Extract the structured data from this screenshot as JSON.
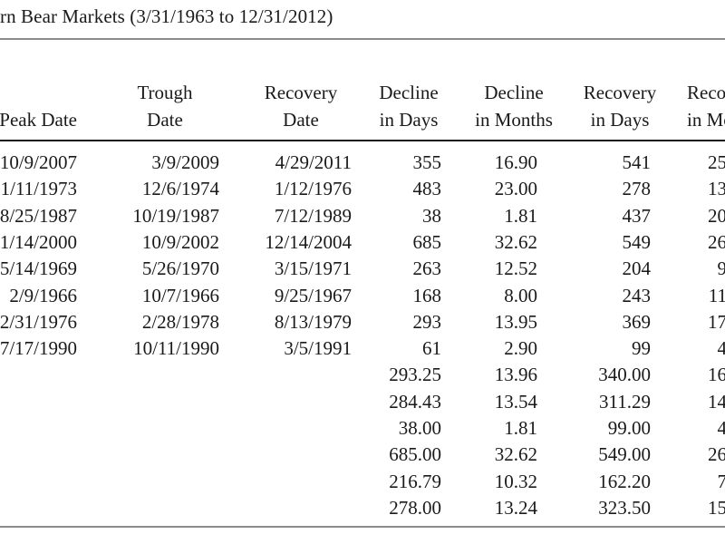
{
  "title": "rn Bear Markets (3/31/1963 to 12/31/2012)",
  "headers": [
    {
      "line1": "",
      "line2": "Peak Date"
    },
    {
      "line1": "Trough",
      "line2": "Date"
    },
    {
      "line1": "Recovery",
      "line2": "Date"
    },
    {
      "line1": "Decline",
      "line2": "in Days"
    },
    {
      "line1": "Decline",
      "line2": "in Months"
    },
    {
      "line1": "Recovery",
      "line2": "in Days"
    },
    {
      "line1": "Reco",
      "line2": "in Mo"
    }
  ],
  "rows": [
    [
      "10/9/2007",
      "3/9/2009",
      "4/29/2011",
      "355",
      "16.90",
      "541",
      "25"
    ],
    [
      "1/11/1973",
      "12/6/1974",
      "1/12/1976",
      "483",
      "23.00",
      "278",
      "13"
    ],
    [
      "8/25/1987",
      "10/19/1987",
      "7/12/1989",
      "38",
      "1.81",
      "437",
      "20"
    ],
    [
      "1/14/2000",
      "10/9/2002",
      "12/14/2004",
      "685",
      "32.62",
      "549",
      "26"
    ],
    [
      "5/14/1969",
      "5/26/1970",
      "3/15/1971",
      "263",
      "12.52",
      "204",
      "9"
    ],
    [
      "2/9/1966",
      "10/7/1966",
      "9/25/1967",
      "168",
      "8.00",
      "243",
      "11"
    ],
    [
      "2/31/1976",
      "2/28/1978",
      "8/13/1979",
      "293",
      "13.95",
      "369",
      "17"
    ],
    [
      "7/17/1990",
      "10/11/1990",
      "3/5/1991",
      "61",
      "2.90",
      "99",
      "4"
    ],
    [
      "",
      "",
      "",
      "293.25",
      "13.96",
      "340.00",
      "16"
    ],
    [
      "",
      "",
      "",
      "284.43",
      "13.54",
      "311.29",
      "14"
    ],
    [
      "",
      "",
      "",
      "38.00",
      "1.81",
      "99.00",
      "4"
    ],
    [
      "",
      "",
      "",
      "685.00",
      "32.62",
      "549.00",
      "26"
    ],
    [
      "",
      "",
      "",
      "216.79",
      "10.32",
      "162.20",
      "7"
    ],
    [
      "",
      "",
      "",
      "278.00",
      "13.24",
      "323.50",
      "15"
    ]
  ]
}
